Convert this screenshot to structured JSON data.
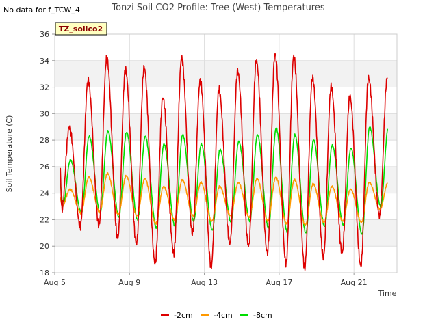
{
  "chart_data": {
    "type": "line",
    "title": "Tonzi Soil CO2 Profile: Tree (West) Temperatures",
    "no_data_note": "No data for f_TCW_4",
    "site_tag": "TZ_soilco2",
    "xlabel": "Time",
    "ylabel": "Soil Temperature (C)",
    "x_unit": "days (Aug)",
    "xlim": [
      5.0,
      23.3
    ],
    "ylim": [
      18,
      36
    ],
    "yticks": [
      18,
      20,
      22,
      24,
      26,
      28,
      30,
      32,
      34,
      36
    ],
    "xticks": [
      {
        "value": 5,
        "label": "Aug 5"
      },
      {
        "value": 9,
        "label": "Aug 9"
      },
      {
        "value": 13,
        "label": "Aug 13"
      },
      {
        "value": 17,
        "label": "Aug 17"
      },
      {
        "value": 21,
        "label": "Aug 21"
      }
    ],
    "grid": true,
    "legend_position": "bottom",
    "series_start": 5.3,
    "series_end": 22.8,
    "series": [
      {
        "name": "-2cm",
        "color": "#dd0000",
        "daily_min": [
          22.7,
          21.5,
          21.6,
          20.6,
          20.2,
          18.7,
          19.5,
          21.0,
          18.5,
          20.2,
          20.0,
          19.5,
          18.7,
          18.4,
          19.2,
          19.5,
          18.5,
          22.3
        ],
        "daily_max": [
          29.0,
          32.5,
          34.2,
          33.3,
          33.5,
          31.2,
          34.2,
          32.5,
          31.8,
          33.2,
          34.0,
          34.5,
          34.3,
          32.7,
          32.0,
          31.3,
          32.7,
          32.7
        ]
      },
      {
        "name": "-4cm",
        "color": "#ff9900",
        "daily_min": [
          23.0,
          22.5,
          22.6,
          22.4,
          22.3,
          21.7,
          22.0,
          22.3,
          21.9,
          22.3,
          22.2,
          21.9,
          21.7,
          21.6,
          21.8,
          21.9,
          21.8,
          22.8
        ],
        "daily_max": [
          24.3,
          25.2,
          25.5,
          25.3,
          25.1,
          24.5,
          25.0,
          24.8,
          24.5,
          24.8,
          25.1,
          25.2,
          25.0,
          24.7,
          24.5,
          24.3,
          24.8,
          24.8
        ]
      },
      {
        "name": "-8cm",
        "color": "#00dd00",
        "daily_min": [
          23.0,
          22.5,
          22.5,
          22.2,
          22.0,
          21.4,
          21.5,
          21.9,
          21.2,
          21.8,
          21.9,
          21.4,
          21.1,
          21.0,
          21.5,
          21.6,
          20.9,
          23.0
        ],
        "daily_max": [
          26.5,
          28.3,
          28.7,
          28.6,
          28.3,
          27.7,
          28.4,
          27.7,
          27.3,
          27.9,
          28.4,
          28.9,
          28.4,
          28.0,
          27.6,
          27.4,
          29.0,
          29.0
        ]
      }
    ]
  }
}
